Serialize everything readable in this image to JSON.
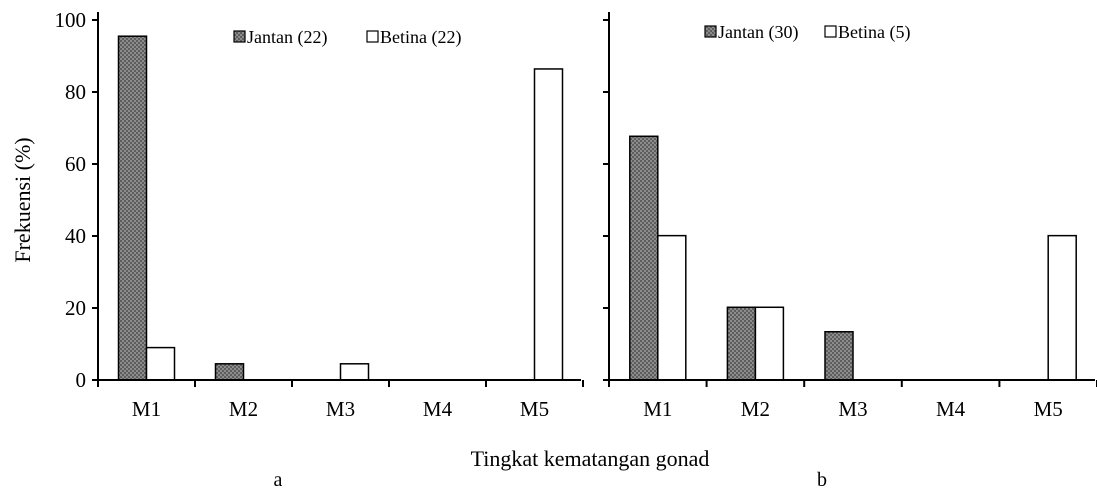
{
  "figure": {
    "ylabel": "Frekuensi (%)",
    "xlabel": "Tingkat kematangan gonad",
    "colors": {
      "male_bar": "#8c8c8c",
      "female_bar": "#ffffff",
      "outline": "#000000"
    }
  },
  "chart_data": [
    {
      "type": "bar",
      "panel_label": "a",
      "categories": [
        "M1",
        "M2",
        "M3",
        "M4",
        "M5"
      ],
      "series": [
        {
          "name": "Jantan (22)",
          "values": [
            95.5,
            4.5,
            0,
            0,
            0
          ]
        },
        {
          "name": "Betina (22)",
          "values": [
            9,
            0,
            4.5,
            0,
            86.4
          ]
        }
      ],
      "ylim": [
        0,
        100
      ],
      "yticks": [
        0,
        20,
        40,
        60,
        80,
        100
      ],
      "ylabel": "Frekuensi (%)",
      "xlabel": "Tingkat kematangan gonad",
      "grid": false,
      "legend": "top-center"
    },
    {
      "type": "bar",
      "panel_label": "b",
      "categories": [
        "M1",
        "M2",
        "M3",
        "M4",
        "M5"
      ],
      "series": [
        {
          "name": "Jantan (30)",
          "values": [
            67.7,
            20.2,
            13.4,
            0,
            0
          ]
        },
        {
          "name": "Betina (5)",
          "values": [
            40.1,
            20.2,
            0,
            0,
            40.1
          ]
        }
      ],
      "ylim": [
        0,
        100
      ],
      "yticks": [
        0,
        20,
        40,
        60,
        80,
        100
      ],
      "grid": false,
      "legend": "top-center"
    }
  ]
}
